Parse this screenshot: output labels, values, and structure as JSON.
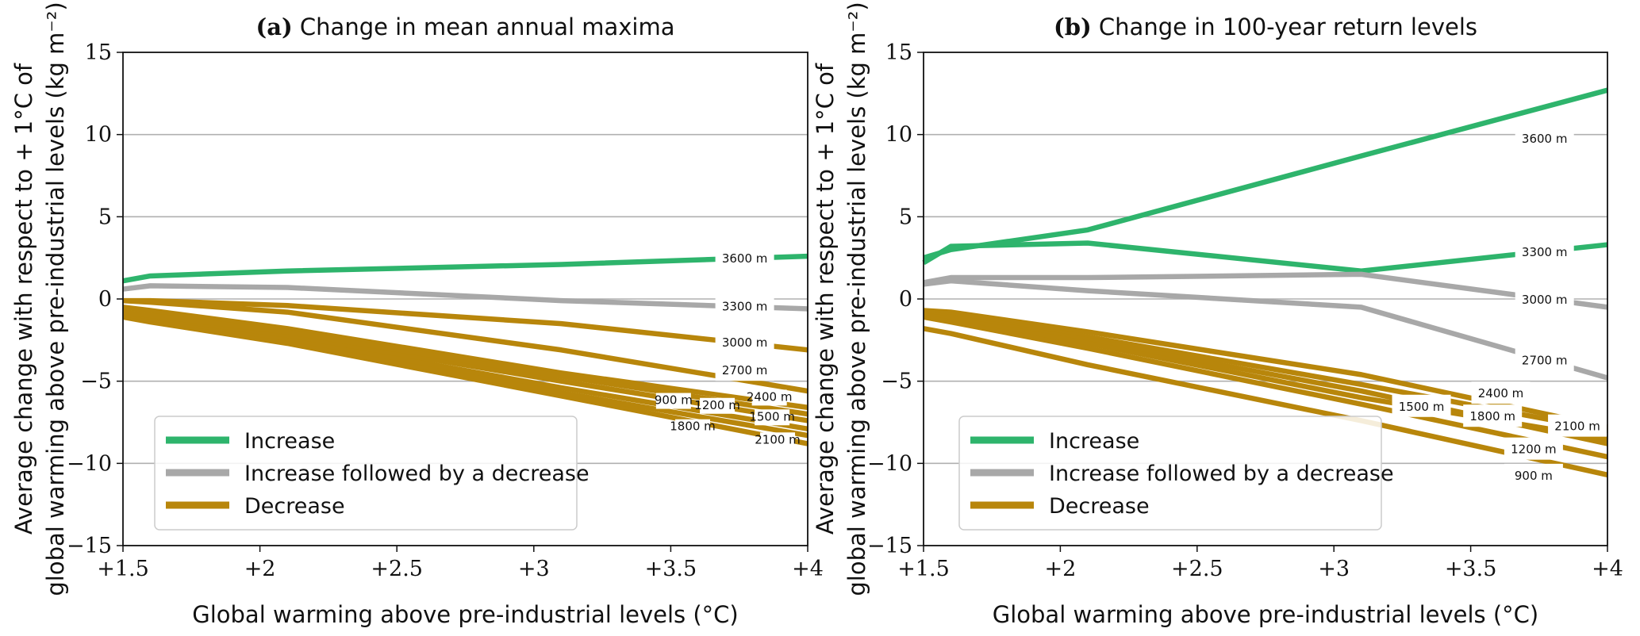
{
  "colors": {
    "increase": "#2eb46c",
    "increase_decrease": "#a8a8a8",
    "decrease": "#b8860b",
    "grid": "#b0b0b0"
  },
  "chart_data": [
    {
      "type": "line",
      "panel": "(a)",
      "title": "Change in mean annual maxima",
      "xlabel": "Global warming above pre-industrial levels (°C)",
      "ylabel": [
        "Average change with respect to + 1°C of",
        "global warming above pre-industrial levels (kg m⁻²)"
      ],
      "xlim": [
        1.5,
        4
      ],
      "ylim": [
        -15,
        15
      ],
      "xticks": [
        1.5,
        2,
        2.5,
        3,
        3.5,
        4
      ],
      "xtick_labels": [
        "+1.5",
        "+2",
        "+2.5",
        "+3",
        "+3.5",
        "+4"
      ],
      "yticks": [
        -15,
        -10,
        -5,
        0,
        5,
        10,
        15
      ],
      "ytick_labels": [
        "−15",
        "−10",
        "−5",
        "0",
        "5",
        "10",
        "15"
      ],
      "grid": "horizontal",
      "legend": {
        "placement": "lower-left",
        "entries": [
          {
            "label": "Increase",
            "category": "increase"
          },
          {
            "label": "Increase followed by a decrease",
            "category": "increase_decrease"
          },
          {
            "label": "Decrease",
            "category": "decrease"
          }
        ]
      },
      "x": [
        1.5,
        1.6,
        2.1,
        3.1,
        4
      ],
      "series": [
        {
          "name": "3600 m",
          "category": "increase",
          "values": [
            1.1,
            1.4,
            1.7,
            2.1,
            2.6
          ],
          "label_at": [
            3.77,
            2.5
          ],
          "label_size": "large"
        },
        {
          "name": "3300 m",
          "category": "increase_decrease",
          "values": [
            0.6,
            0.8,
            0.7,
            -0.1,
            -0.6
          ],
          "label_at": [
            3.77,
            -0.4
          ],
          "label_size": "large"
        },
        {
          "name": "3000 m",
          "category": "decrease",
          "values": [
            -0.1,
            -0.1,
            -0.4,
            -1.5,
            -3.1
          ],
          "label_at": [
            3.77,
            -2.6
          ],
          "label_size": "large"
        },
        {
          "name": "2700 m",
          "category": "decrease",
          "values": [
            -0.1,
            -0.2,
            -0.8,
            -3.1,
            -5.6
          ],
          "label_at": [
            3.77,
            -4.3
          ],
          "label_size": "large"
        },
        {
          "name": "2400 m",
          "category": "decrease",
          "values": [
            -0.5,
            -0.7,
            -1.8,
            -4.5,
            -6.6
          ],
          "label_at": [
            3.86,
            -6.0
          ],
          "label_size": "small"
        },
        {
          "name": "2100 m",
          "category": "decrease",
          "values": [
            -1.1,
            -1.4,
            -2.7,
            -5.9,
            -8.8
          ],
          "label_at": [
            3.89,
            -8.6
          ],
          "label_size": "small"
        },
        {
          "name": "1800 m",
          "category": "decrease",
          "values": [
            -1.0,
            -1.3,
            -2.6,
            -5.7,
            -8.3
          ],
          "label_at": [
            3.58,
            -7.8
          ],
          "label_size": "small"
        },
        {
          "name": "1500 m",
          "category": "decrease",
          "values": [
            -0.9,
            -1.2,
            -2.4,
            -5.4,
            -7.9
          ],
          "label_at": [
            3.87,
            -7.2
          ],
          "label_size": "small"
        },
        {
          "name": "1200 m",
          "category": "decrease",
          "values": [
            -0.8,
            -1.1,
            -2.2,
            -5.0,
            -7.4
          ],
          "label_at": [
            3.67,
            -6.5
          ],
          "label_size": "small"
        },
        {
          "name": "900 m",
          "category": "decrease",
          "values": [
            -0.8,
            -1.0,
            -2.0,
            -4.7,
            -7.0
          ],
          "label_at": [
            3.51,
            -6.2
          ],
          "label_size": "small"
        }
      ]
    },
    {
      "type": "line",
      "panel": "(b)",
      "title": "Change in 100-year return levels",
      "xlabel": "Global warming above pre-industrial levels (°C)",
      "ylabel": [
        "Average change with respect to + 1°C of",
        "global warming above pre-industrial levels (kg m⁻²)"
      ],
      "xlim": [
        1.5,
        4
      ],
      "ylim": [
        -15,
        15
      ],
      "xticks": [
        1.5,
        2,
        2.5,
        3,
        3.5,
        4
      ],
      "xtick_labels": [
        "+1.5",
        "+2",
        "+2.5",
        "+3",
        "+3.5",
        "+4"
      ],
      "yticks": [
        -15,
        -10,
        -5,
        0,
        5,
        10,
        15
      ],
      "ytick_labels": [
        "−15",
        "−10",
        "−5",
        "0",
        "5",
        "10",
        "15"
      ],
      "grid": "horizontal",
      "legend": {
        "placement": "lower-left",
        "entries": [
          {
            "label": "Increase",
            "category": "increase"
          },
          {
            "label": "Increase followed by a decrease",
            "category": "increase_decrease"
          },
          {
            "label": "Decrease",
            "category": "decrease"
          }
        ]
      },
      "x": [
        1.5,
        1.6,
        2.1,
        3.1,
        4
      ],
      "series": [
        {
          "name": "3600 m",
          "category": "increase",
          "values": [
            2.5,
            3.0,
            4.2,
            8.7,
            12.7
          ],
          "label_at": [
            3.77,
            9.8
          ],
          "label_size": "large"
        },
        {
          "name": "3300 m",
          "category": "increase",
          "values": [
            2.2,
            3.2,
            3.4,
            1.7,
            3.3
          ],
          "label_at": [
            3.77,
            2.9
          ],
          "label_size": "large"
        },
        {
          "name": "3000 m",
          "category": "increase_decrease",
          "values": [
            1.0,
            1.3,
            1.3,
            1.5,
            -0.5
          ],
          "label_at": [
            3.77,
            0.0
          ],
          "label_size": "large"
        },
        {
          "name": "2700 m",
          "category": "increase_decrease",
          "values": [
            0.9,
            1.1,
            0.5,
            -0.5,
            -4.8
          ],
          "label_at": [
            3.77,
            -3.7
          ],
          "label_size": "large"
        },
        {
          "name": "2400 m",
          "category": "decrease",
          "values": [
            -0.7,
            -0.8,
            -2.0,
            -4.6,
            -7.8
          ],
          "label_at": [
            3.61,
            -5.7
          ],
          "label_size": "large"
        },
        {
          "name": "2100 m",
          "category": "decrease",
          "values": [
            -0.8,
            -1.0,
            -2.3,
            -5.2,
            -8.0
          ],
          "label_at": [
            3.89,
            -7.7
          ],
          "label_size": "large"
        },
        {
          "name": "1800 m",
          "category": "decrease",
          "values": [
            -0.9,
            -1.1,
            -2.5,
            -5.6,
            -8.8
          ],
          "label_at": [
            3.58,
            -7.1
          ],
          "label_size": "large"
        },
        {
          "name": "1500 m",
          "category": "decrease",
          "values": [
            -1.0,
            -1.2,
            -2.7,
            -6.0,
            -8.5
          ],
          "label_at": [
            3.32,
            -6.5
          ],
          "label_size": "large"
        },
        {
          "name": "1200 m",
          "category": "decrease",
          "values": [
            -1.1,
            -1.4,
            -3.0,
            -6.4,
            -9.6
          ],
          "label_at": [
            3.73,
            -9.1
          ],
          "label_size": "large"
        },
        {
          "name": "900 m",
          "category": "decrease",
          "values": [
            -1.8,
            -2.1,
            -4.0,
            -7.4,
            -10.7
          ],
          "label_at": [
            3.73,
            -10.7
          ],
          "label_size": "large"
        }
      ]
    }
  ]
}
